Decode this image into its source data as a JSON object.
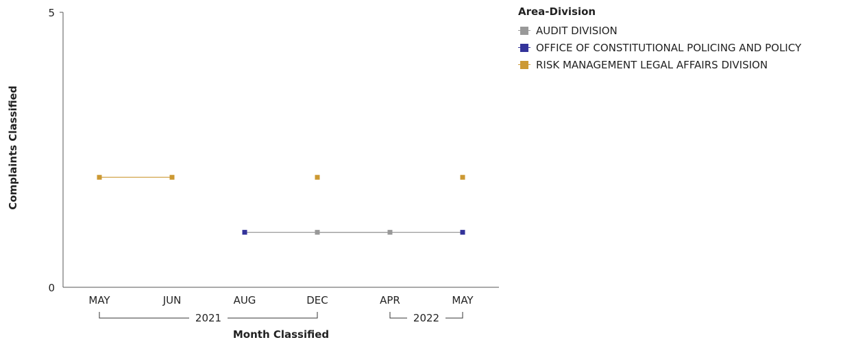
{
  "chart_data": {
    "type": "line",
    "xlabel": "Month Classified",
    "ylabel": "Complaints Classified",
    "ylim": [
      0,
      5
    ],
    "yticks": [
      "0",
      "5"
    ],
    "categories": [
      "MAY",
      "JUN",
      "AUG",
      "DEC",
      "APR",
      "MAY"
    ],
    "x_groups": [
      {
        "label": "2021",
        "from": 0,
        "to": 3
      },
      {
        "label": "2022",
        "from": 4,
        "to": 5
      }
    ],
    "legend_title": "Area-Division",
    "legend_position": "right",
    "grid": false,
    "series": [
      {
        "name": "AUDIT DIVISION",
        "color": "#999999",
        "values": [
          null,
          null,
          null,
          1,
          1,
          null
        ]
      },
      {
        "name": "OFFICE OF CONSTITUTIONAL POLICING AND POLICY",
        "color": "#33339a",
        "values": [
          null,
          null,
          1,
          null,
          null,
          1
        ]
      },
      {
        "name": "RISK MANAGEMENT LEGAL AFFAIRS DIVISION",
        "color": "#cc9933",
        "values": [
          2,
          2,
          null,
          2,
          null,
          2
        ]
      }
    ],
    "segments": [
      {
        "from": 2,
        "to": 5,
        "value": 1,
        "color": "#999999"
      }
    ]
  }
}
